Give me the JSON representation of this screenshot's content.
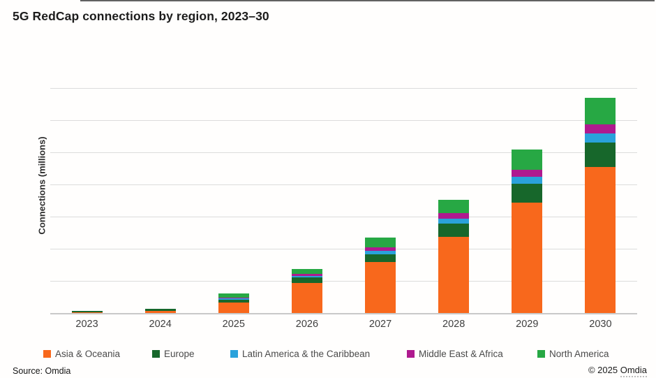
{
  "page": {
    "title": "5G RedCap connections by region, 2023–30",
    "source": "Source: Omdia",
    "copyright_prefix": "© 2025 ",
    "copyright_name": "Omdia"
  },
  "chart_data": {
    "type": "bar",
    "stacked": true,
    "title": "5G RedCap connections by region, 2023–30",
    "xlabel": "",
    "ylabel": "Connections (millions)",
    "categories": [
      "2023",
      "2024",
      "2025",
      "2026",
      "2027",
      "2028",
      "2029",
      "2030"
    ],
    "ylim": [
      0,
      7
    ],
    "y_tick_labels_shown": false,
    "units_note": "Y axis has no numeric labels; values estimated in gridline units (1 unit = one gridline interval, 7 intervals above baseline)",
    "grid": "horizontal",
    "legend_position": "bottom",
    "series": [
      {
        "name": "Asia & Oceania",
        "color": "#F8681C",
        "values": [
          0.02,
          0.07,
          0.32,
          0.94,
          1.58,
          2.38,
          3.44,
          4.55
        ]
      },
      {
        "name": "Europe",
        "color": "#17672B",
        "values": [
          0.04,
          0.05,
          0.1,
          0.16,
          0.25,
          0.41,
          0.58,
          0.76
        ]
      },
      {
        "name": "Latin America & the Caribbean",
        "color": "#2AA2DB",
        "values": [
          0.0,
          0.0,
          0.03,
          0.06,
          0.1,
          0.15,
          0.22,
          0.28
        ]
      },
      {
        "name": "Middle East & Africa",
        "color": "#AF1A8F",
        "values": [
          0.0,
          0.0,
          0.03,
          0.06,
          0.12,
          0.16,
          0.22,
          0.27
        ]
      },
      {
        "name": "North America",
        "color": "#27A844",
        "values": [
          0.0,
          0.01,
          0.12,
          0.16,
          0.29,
          0.42,
          0.63,
          0.83
        ]
      }
    ],
    "totals": [
      0.06,
      0.13,
      0.6,
      1.38,
      2.34,
      3.52,
      5.09,
      6.69
    ]
  }
}
